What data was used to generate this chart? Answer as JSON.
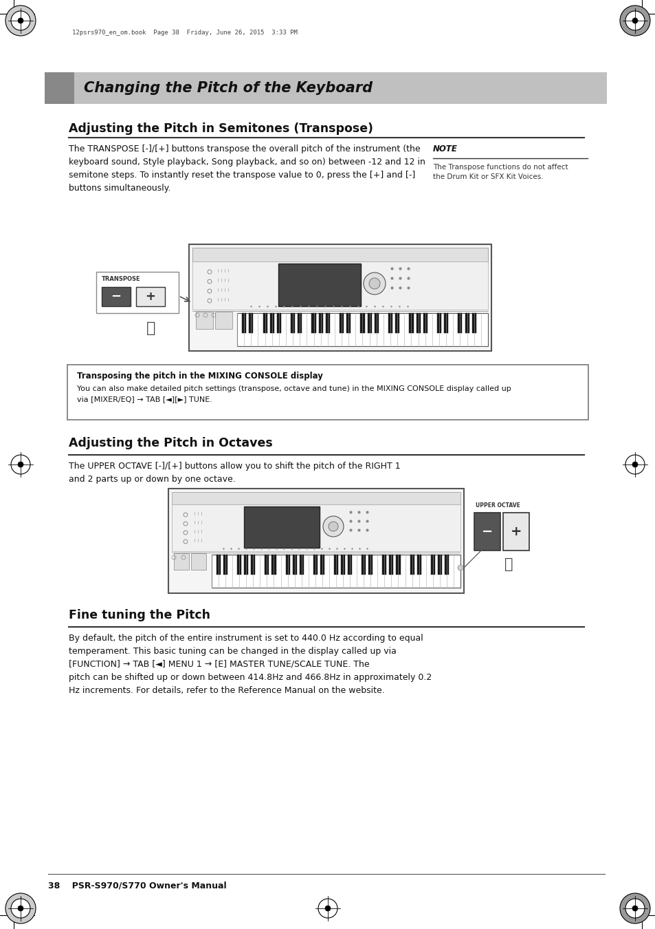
{
  "page_bg": "#ffffff",
  "title_text": "Changing the Pitch of the Keyboard",
  "section1_title": "Adjusting the Pitch in Semitones (Transpose)",
  "section1_body": "The TRANSPOSE [-]/[+] buttons transpose the overall pitch of the instrument (the\nkeyboard sound, Style playback, Song playback, and so on) between -12 and 12 in\nsemitone steps. To instantly reset the transpose value to 0, press the [+] and [-]\nbuttons simultaneously.",
  "note_title": "NOTE",
  "note_body": "The Transpose functions do not affect\nthe Drum Kit or SFX Kit Voices.",
  "box_title": "Transposing the pitch in the MIXING CONSOLE display",
  "box_body": "You can also make detailed pitch settings (transpose, octave and tune) in the MIXING CONSOLE display called up\nvia [MIXER/EQ] → TAB [◄][►] TUNE.",
  "section2_title": "Adjusting the Pitch in Octaves",
  "section2_body": "The UPPER OCTAVE [-]/[+] buttons allow you to shift the pitch of the RIGHT 1\nand 2 parts up or down by one octave.",
  "section3_title": "Fine tuning the Pitch",
  "section3_body": "By default, the pitch of the entire instrument is set to 440.0 Hz according to equal\ntemperament. This basic tuning can be changed in the display called up via\n[FUNCTION] → TAB [◄] MENU 1 → [E] MASTER TUNE/SCALE TUNE. The\npitch can be shifted up or down between 414.8Hz and 466.8Hz in approximately 0.2\nHz increments. For details, refer to the Reference Manual on the website.",
  "footer_text": "38    PSR-S970/S770 Owner's Manual",
  "header_file_text": "12psrs970_en_om.book  Page 38  Friday, June 26, 2015  3:33 PM"
}
